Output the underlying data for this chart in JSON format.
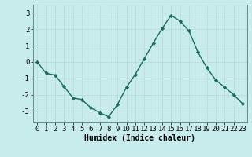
{
  "x": [
    0,
    1,
    2,
    3,
    4,
    5,
    6,
    7,
    8,
    9,
    10,
    11,
    12,
    13,
    14,
    15,
    16,
    17,
    18,
    19,
    20,
    21,
    22,
    23
  ],
  "y": [
    0.0,
    -0.7,
    -0.8,
    -1.5,
    -2.2,
    -2.3,
    -2.8,
    -3.1,
    -3.35,
    -2.6,
    -1.55,
    -0.75,
    0.2,
    1.15,
    2.05,
    2.85,
    2.5,
    1.9,
    0.6,
    -0.35,
    -1.1,
    -1.55,
    -2.0,
    -2.55
  ],
  "line_color": "#1a6b5a",
  "marker": "D",
  "marker_size": 2.2,
  "bg_color": "#c8ecec",
  "grid_color": "#b8d8d8",
  "xlabel": "Humidex (Indice chaleur)",
  "xlim": [
    -0.5,
    23.5
  ],
  "ylim": [
    -3.7,
    3.5
  ],
  "yticks": [
    -3,
    -2,
    -1,
    0,
    1,
    2,
    3
  ],
  "xticks": [
    0,
    1,
    2,
    3,
    4,
    5,
    6,
    7,
    8,
    9,
    10,
    11,
    12,
    13,
    14,
    15,
    16,
    17,
    18,
    19,
    20,
    21,
    22,
    23
  ],
  "xlabel_fontsize": 7,
  "tick_fontsize": 6.5,
  "line_width": 1.0
}
